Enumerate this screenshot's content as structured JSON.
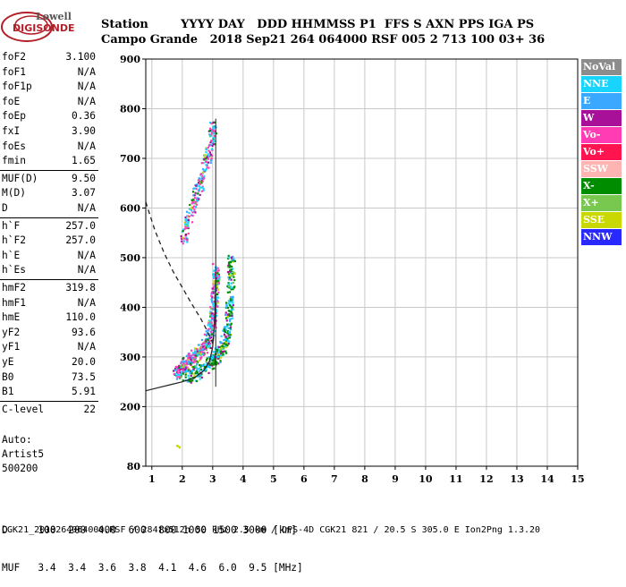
{
  "logo": {
    "line1": "Lowell",
    "line2": "DIGISONDE"
  },
  "header": {
    "labels": "Station        YYYY DAY   DDD HHMMSS P1  FFS S AXN PPS IGA PS",
    "values": "Campo Grande   2018 Sep21 264 064000 RSF 005 2 713 100 03+ 36"
  },
  "params": {
    "group1": [
      {
        "label": "foF2",
        "value": "3.100"
      },
      {
        "label": "foF1",
        "value": "N/A"
      },
      {
        "label": "foF1p",
        "value": "N/A"
      },
      {
        "label": "foE",
        "value": "N/A"
      },
      {
        "label": "foEp",
        "value": "0.36"
      },
      {
        "label": "fxI",
        "value": "3.90"
      },
      {
        "label": "foEs",
        "value": "N/A"
      },
      {
        "label": "fmin",
        "value": "1.65"
      }
    ],
    "group2": [
      {
        "label": "MUF(D)",
        "value": "9.50"
      },
      {
        "label": "M(D)",
        "value": "3.07"
      },
      {
        "label": "D",
        "value": "N/A"
      }
    ],
    "group3": [
      {
        "label": "h`F",
        "value": "257.0"
      },
      {
        "label": "h`F2",
        "value": "257.0"
      },
      {
        "label": "h`E",
        "value": "N/A"
      },
      {
        "label": "h`Es",
        "value": "N/A"
      }
    ],
    "group4": [
      {
        "label": "hmF2",
        "value": "319.8"
      },
      {
        "label": "hmF1",
        "value": "N/A"
      },
      {
        "label": "hmE",
        "value": "110.0"
      },
      {
        "label": "yF2",
        "value": "93.6"
      },
      {
        "label": "yF1",
        "value": "N/A"
      },
      {
        "label": "yE",
        "value": "20.0"
      },
      {
        "label": "B0",
        "value": "73.5"
      },
      {
        "label": "B1",
        "value": "5.91"
      }
    ],
    "group5": [
      {
        "label": "C-level",
        "value": "22"
      }
    ]
  },
  "auto": {
    "line1": "Auto:",
    "line2": "Artist5",
    "line3": "500200"
  },
  "legend": [
    {
      "label": "NoVal",
      "color": "#8c8c8c"
    },
    {
      "label": "NNE",
      "color": "#19d4ff"
    },
    {
      "label": "E",
      "color": "#3aa8ff"
    },
    {
      "label": "W",
      "color": "#a8109a"
    },
    {
      "label": "Vo-",
      "color": "#ff3cb4"
    },
    {
      "label": "Vo+",
      "color": "#ff1450"
    },
    {
      "label": "SSW",
      "color": "#ffb4b4"
    },
    {
      "label": "X-",
      "color": "#008c00"
    },
    {
      "label": "X+",
      "color": "#78c850"
    },
    {
      "label": "SSE",
      "color": "#c8d800"
    },
    {
      "label": "NNW",
      "color": "#2828ff"
    }
  ],
  "footer": {
    "line1": "D     100  200  400  600  800 1000 1500 3000 [km]",
    "line2": "MUF   3.4  3.4  3.6  3.8  4.1  4.6  6.0  9.5 [MHz]",
    "line3": "CGK21_2018264064000.RSF / 284fx512h 50 kHz 2.5 km / DPS-4D CGK21 821 / 20.5 S 305.0 E Ion2Png 1.3.20"
  },
  "chart_data": {
    "type": "scatter",
    "xlim": [
      0.8,
      15
    ],
    "ylim": [
      80,
      900
    ],
    "xticks": [
      1,
      2,
      3,
      4,
      5,
      6,
      7,
      8,
      9,
      10,
      11,
      12,
      13,
      14,
      15
    ],
    "yticks": [
      80,
      200,
      300,
      400,
      500,
      600,
      700,
      800,
      900
    ],
    "grid": true,
    "traces": [
      {
        "name": "O-trace",
        "color": "#ff3cb4",
        "points": [
          [
            1.75,
            268
          ],
          [
            1.9,
            276
          ],
          [
            2.05,
            283
          ],
          [
            2.2,
            292
          ],
          [
            2.35,
            300
          ],
          [
            2.5,
            308
          ],
          [
            2.65,
            318
          ],
          [
            2.8,
            332
          ],
          [
            2.9,
            348
          ],
          [
            2.97,
            372
          ],
          [
            3.02,
            400
          ],
          [
            3.05,
            430
          ],
          [
            3.07,
            460
          ],
          [
            3.09,
            480
          ]
        ]
      },
      {
        "name": "X-trace",
        "color": "#008c00",
        "points": [
          [
            2.1,
            262
          ],
          [
            2.4,
            268
          ],
          [
            2.7,
            278
          ],
          [
            2.95,
            292
          ],
          [
            3.15,
            305
          ],
          [
            3.3,
            320
          ],
          [
            3.42,
            345
          ],
          [
            3.5,
            380
          ],
          [
            3.55,
            420
          ],
          [
            3.58,
            470
          ],
          [
            3.6,
            500
          ]
        ]
      },
      {
        "name": "Spread-F",
        "color": "#ff3cb4",
        "points": [
          [
            2.0,
            540
          ],
          [
            2.2,
            580
          ],
          [
            2.4,
            620
          ],
          [
            2.6,
            660
          ],
          [
            2.8,
            700
          ],
          [
            2.95,
            740
          ],
          [
            3.0,
            770
          ]
        ]
      },
      {
        "name": "Outlier",
        "color": "#c8d800",
        "points": [
          [
            1.8,
            122
          ],
          [
            1.9,
            120
          ]
        ]
      }
    ],
    "profile_solid": [
      [
        0.8,
        232
      ],
      [
        1.2,
        238
      ],
      [
        1.6,
        244
      ],
      [
        2.0,
        250
      ],
      [
        2.4,
        258
      ],
      [
        2.7,
        272
      ],
      [
        2.9,
        292
      ],
      [
        3.0,
        320
      ],
      [
        3.05,
        360
      ],
      [
        3.08,
        400
      ],
      [
        3.1,
        440
      ],
      [
        3.1,
        460
      ]
    ],
    "profile_dashed": [
      [
        0.8,
        612
      ],
      [
        1.1,
        555
      ],
      [
        1.4,
        510
      ],
      [
        1.7,
        472
      ],
      [
        2.0,
        440
      ],
      [
        2.3,
        408
      ],
      [
        2.6,
        378
      ],
      [
        2.8,
        355
      ],
      [
        2.95,
        335
      ],
      [
        3.05,
        320
      ]
    ],
    "vertical_line_x": 3.1,
    "vertical_line_ylim": [
      240,
      780
    ]
  }
}
